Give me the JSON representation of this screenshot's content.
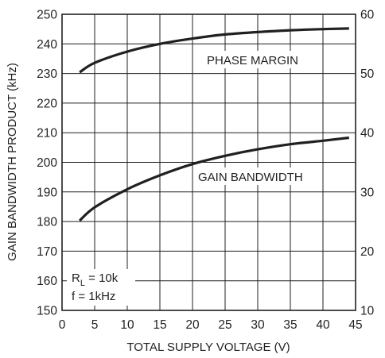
{
  "chart_data": {
    "type": "line",
    "title": "",
    "xlabel": "TOTAL SUPPLY VOLTAGE (V)",
    "ylabel_left": "GAIN BANDWIDTH PRODUCT (kHz)",
    "ylabel_right": "",
    "xlim": [
      0,
      45
    ],
    "ylim_left": [
      150,
      250
    ],
    "ylim_right": [
      10,
      60
    ],
    "x_ticks": [
      0,
      5,
      10,
      15,
      20,
      25,
      30,
      35,
      40,
      45
    ],
    "y_ticks_left": [
      150,
      160,
      170,
      180,
      190,
      200,
      210,
      220,
      230,
      240,
      250
    ],
    "y_ticks_right": [
      10,
      20,
      30,
      40,
      50,
      60
    ],
    "grid": true,
    "series": [
      {
        "name": "PHASE MARGIN",
        "axis": "right",
        "x": [
          2.7,
          5,
          10,
          15,
          20,
          25,
          30,
          35,
          40,
          44
        ],
        "values": [
          50.2,
          51.8,
          53.7,
          55.0,
          55.9,
          56.6,
          57.0,
          57.3,
          57.5,
          57.6
        ]
      },
      {
        "name": "GAIN BANDWIDTH",
        "axis": "left",
        "x": [
          2.7,
          5,
          10,
          15,
          20,
          25,
          30,
          35,
          40,
          44
        ],
        "values": [
          180.3,
          184.8,
          190.9,
          195.6,
          199.4,
          202.2,
          204.4,
          206.1,
          207.3,
          208.3
        ]
      }
    ],
    "annotations": {
      "rl_main": "R",
      "rl_sub": "L",
      "rl_value": " = 10k",
      "freq": "f = 1kHz"
    }
  },
  "colors": {
    "line": "#231f20",
    "grid": "#231f20"
  }
}
